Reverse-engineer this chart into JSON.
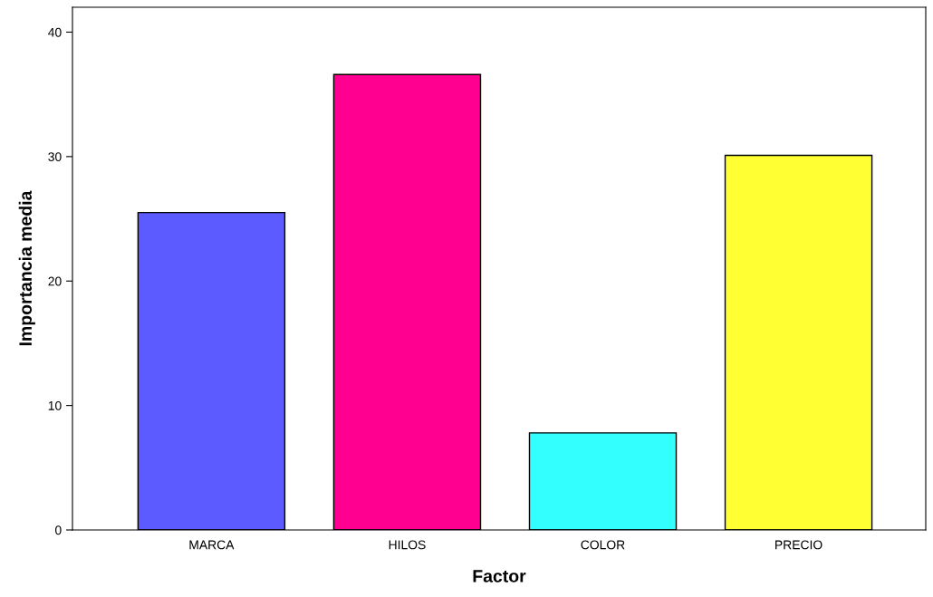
{
  "chart_data": {
    "type": "bar",
    "xlabel": "Factor",
    "ylabel": "Importancia media",
    "categories": [
      "MARCA",
      "HILOS",
      "COLOR",
      "PRECIO"
    ],
    "values": [
      25.5,
      36.6,
      7.8,
      30.1
    ],
    "colors": [
      "#5b5bff",
      "#ff0090",
      "#33ffff",
      "#ffff33"
    ],
    "ylim": [
      0,
      42
    ],
    "yticks": [
      0,
      10,
      20,
      30,
      40
    ],
    "grid": false,
    "legend": false
  }
}
